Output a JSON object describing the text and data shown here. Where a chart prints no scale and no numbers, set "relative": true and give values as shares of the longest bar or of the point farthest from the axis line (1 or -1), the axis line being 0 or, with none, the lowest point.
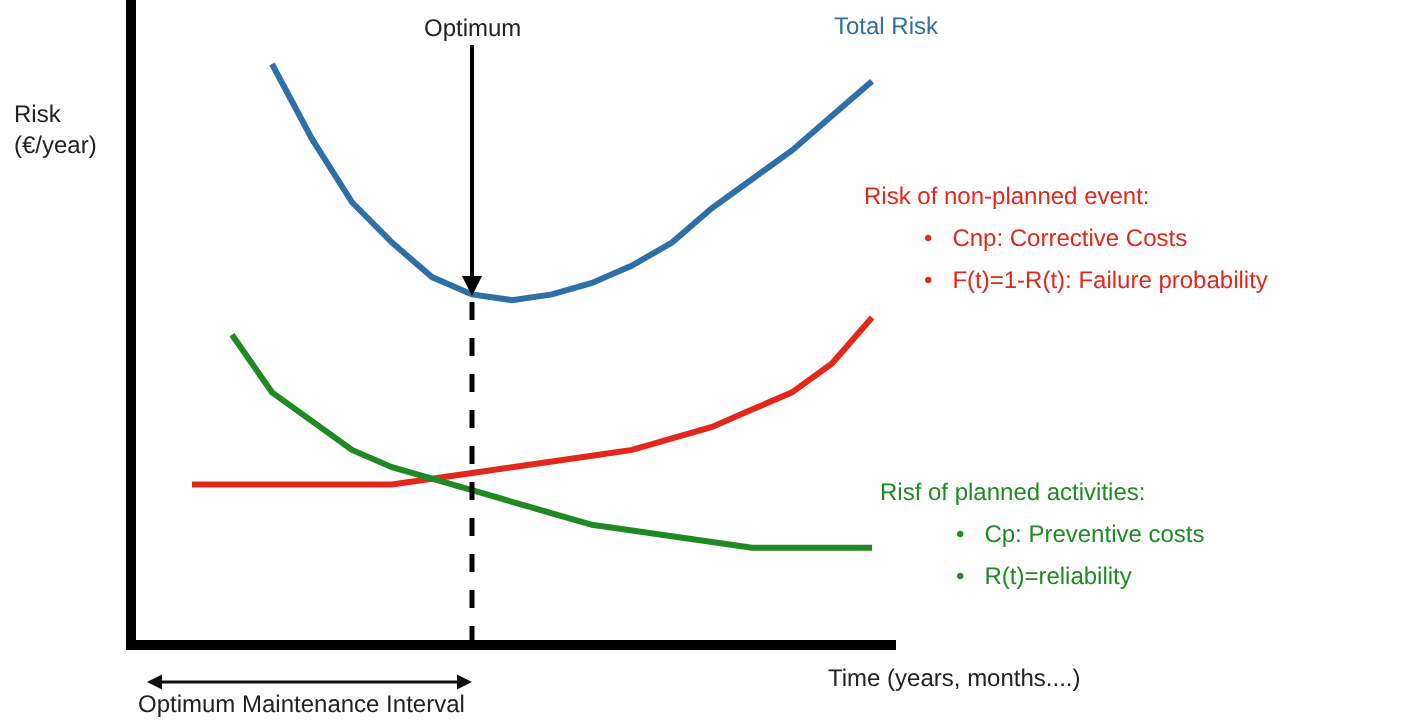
{
  "chart_data": {
    "type": "line",
    "relative": true,
    "xlabel": "Time (years, months....)",
    "ylabel": "Risk\n(€/year)",
    "categories": [
      null,
      null,
      null,
      null,
      null,
      null,
      null,
      null,
      null,
      null,
      null,
      null,
      null,
      null,
      null,
      null,
      null,
      null
    ],
    "series": [
      {
        "name": "Total Risk",
        "color": "#2f6fa8",
        "values": [
          null,
          null,
          1.0,
          0.87,
          0.76,
          0.69,
          0.63,
          0.6,
          0.59,
          0.6,
          0.62,
          0.65,
          0.69,
          0.75,
          0.8,
          0.85,
          0.91,
          0.97
        ]
      },
      {
        "name": "Risk of non-planned event:",
        "color": "#e4271b",
        "values": [
          0.27,
          0.27,
          0.27,
          0.27,
          0.27,
          0.27,
          0.28,
          0.29,
          0.3,
          0.31,
          0.32,
          0.33,
          0.35,
          0.37,
          0.4,
          0.43,
          0.48,
          0.56
        ]
      },
      {
        "name": "Risf of planned activities:",
        "color": "#1f8a22",
        "values": [
          null,
          0.53,
          0.43,
          0.38,
          0.33,
          0.3,
          0.28,
          0.26,
          0.24,
          0.22,
          0.2,
          0.19,
          0.18,
          0.17,
          0.16,
          0.16,
          0.16,
          0.16
        ]
      }
    ],
    "annotations": [
      "•   Cnp: Corrective Costs",
      "•   F(t)=1-R(t): Failure probability",
      "•   Cp: Preventive costs",
      "•   R(t)=reliability",
      "Optimum Maintenance Interval",
      "Optimum"
    ],
    "legend": false,
    "grid": false,
    "marker": "none",
    "line_style": "solid"
  }
}
